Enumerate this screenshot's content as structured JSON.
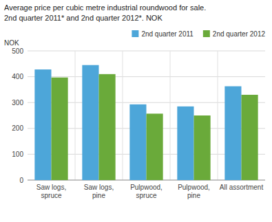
{
  "chart_data": {
    "type": "bar",
    "title": "Average price per cubic metre industrial roundwood for sale.",
    "subtitle": "2nd quarter 2011* and 2nd quarter 2012*. NOK",
    "ylabel": "NOK",
    "categories": [
      "Saw logs,\nspruce",
      "Saw logs,\npine",
      "Pulpwood,\nspruce",
      "Pulpwood,\npine",
      "All assortment"
    ],
    "series": [
      {
        "name": "2nd quarter 2011",
        "color": "#4da6d9",
        "values": [
          428,
          445,
          293,
          285,
          363
        ]
      },
      {
        "name": "2nd quarter 2012",
        "color": "#6aaa3a",
        "values": [
          397,
          410,
          257,
          250,
          330
        ]
      }
    ],
    "ylim": [
      0,
      500
    ],
    "yticks": [
      0,
      100,
      200,
      300,
      400,
      500
    ],
    "grid": true,
    "legend": "upper right"
  }
}
